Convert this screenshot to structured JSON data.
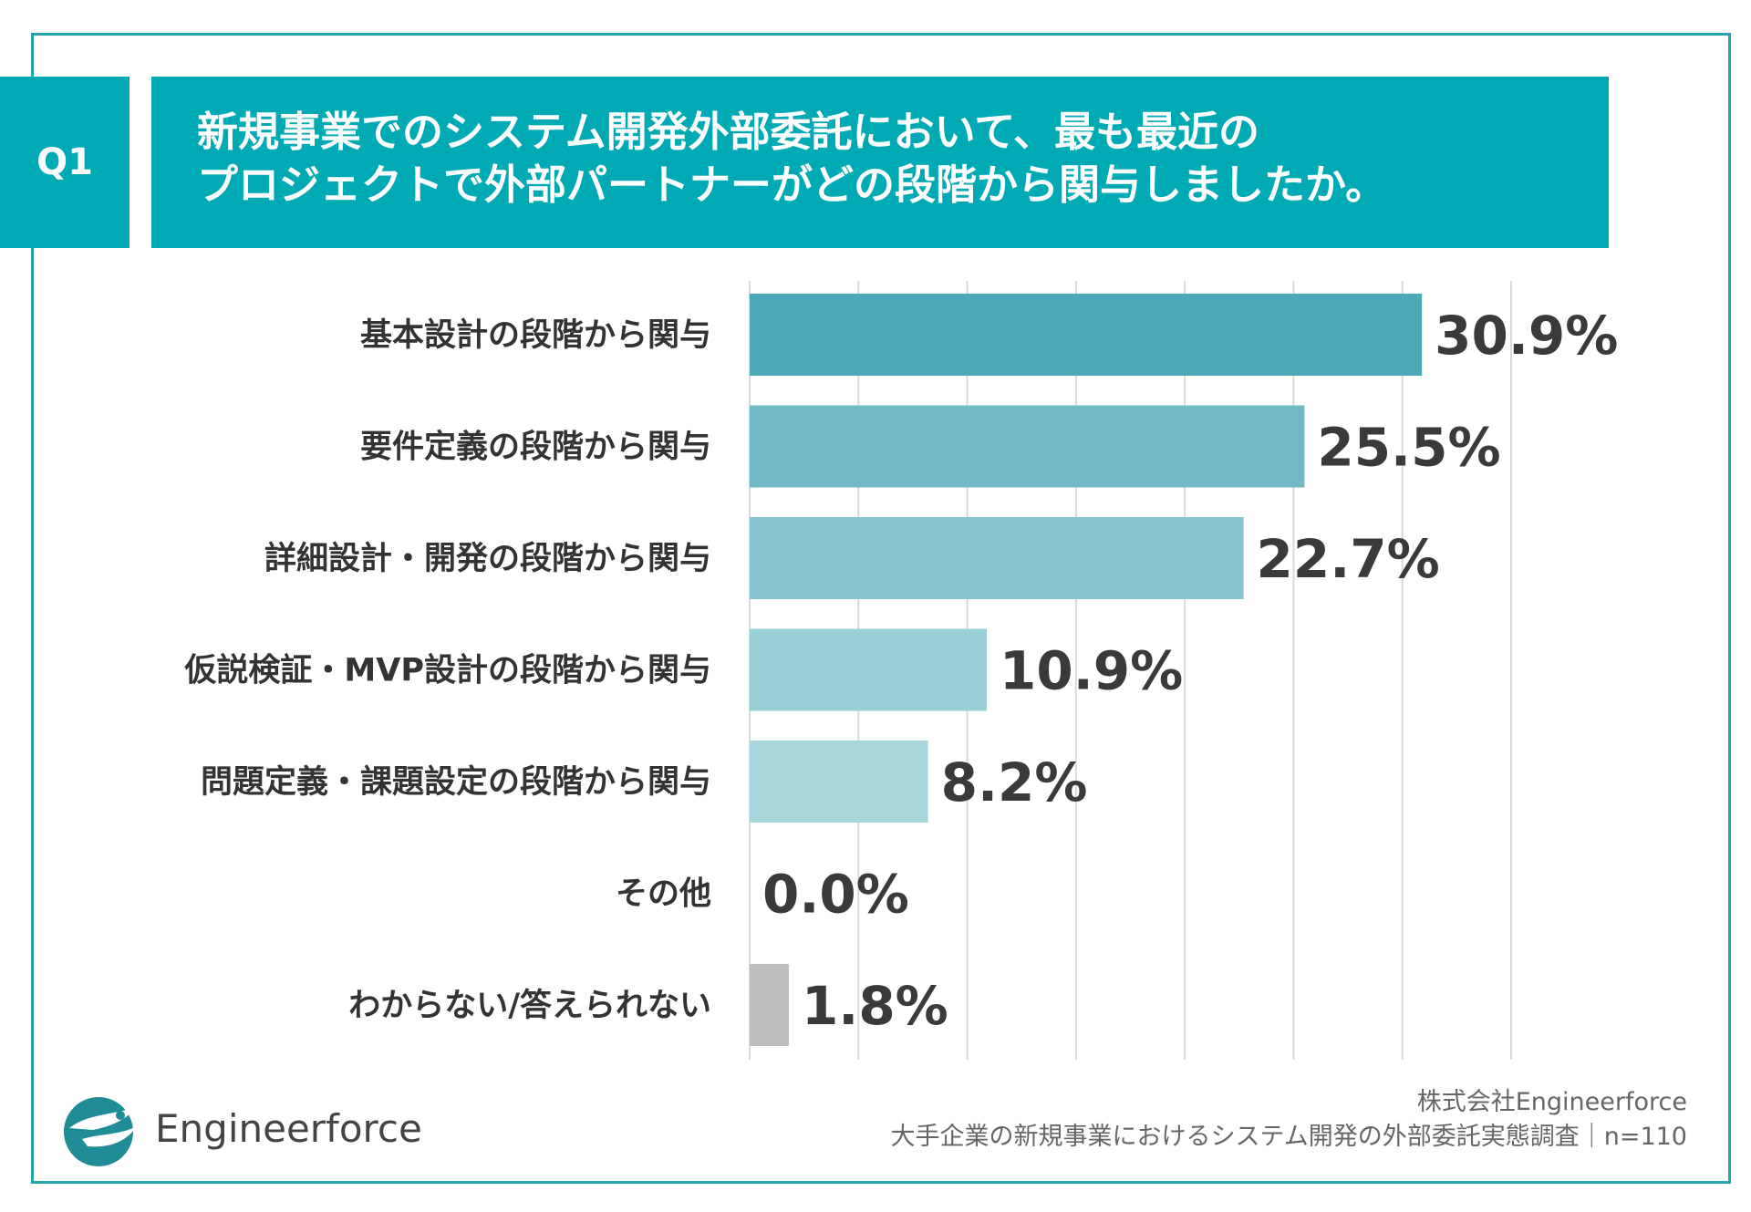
{
  "question": {
    "badge": "Q1",
    "line1": "新規事業でのシステム開発外部委託において、最も最近の",
    "line2": "プロジェクトで外部パートナーがどの段階から関与しましたか。"
  },
  "chart_data": {
    "type": "bar",
    "orientation": "horizontal",
    "categories": [
      "基本設計の段階から関与",
      "要件定義の段階から関与",
      "詳細設計・開発の段階から関与",
      "仮説検証・MVP設計の段階から関与",
      "問題定義・課題設定の段階から関与",
      "その他",
      "わからない/答えられない"
    ],
    "values": [
      30.9,
      25.5,
      22.7,
      10.9,
      8.2,
      0.0,
      1.8
    ],
    "labels": [
      "30.9%",
      "25.5%",
      "22.7%",
      "10.9%",
      "8.2%",
      "0.0%",
      "1.8%"
    ],
    "colors": [
      "#4ea9b6",
      "#6fbac5",
      "#85c5cf",
      "#99cfd7",
      "#a9d6dd",
      "#b8dce1",
      "#bebebe"
    ],
    "xlim": [
      0,
      35
    ],
    "grid_step": 5,
    "grid": true,
    "unit": "%"
  },
  "brand": {
    "name": "Engineerforce",
    "logo_icon": "bird-logo-icon",
    "colors": {
      "accent": "#00aab4",
      "dark": "#1f8c96",
      "frame": "#26a3ad"
    }
  },
  "footer": {
    "company": "株式会社Engineerforce",
    "survey": "大手企業の新規事業におけるシステム開発の外部委託実態調査｜n=110"
  }
}
